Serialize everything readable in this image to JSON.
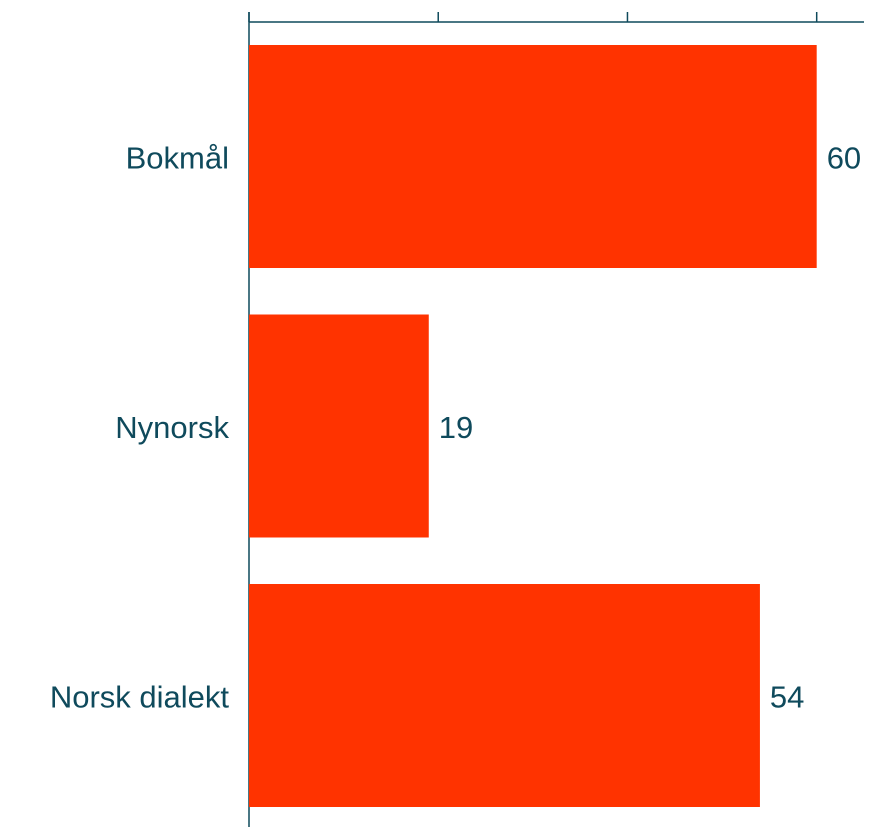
{
  "chart_data": {
    "type": "bar",
    "orientation": "horizontal",
    "categories": [
      "Bokmål",
      "Nynorsk",
      "Norsk dialekt"
    ],
    "values": [
      60,
      19,
      54
    ],
    "color": "#ff3300",
    "xlim": [
      0,
      65
    ],
    "xticks": [
      0,
      20,
      40,
      60
    ],
    "grid": false
  }
}
